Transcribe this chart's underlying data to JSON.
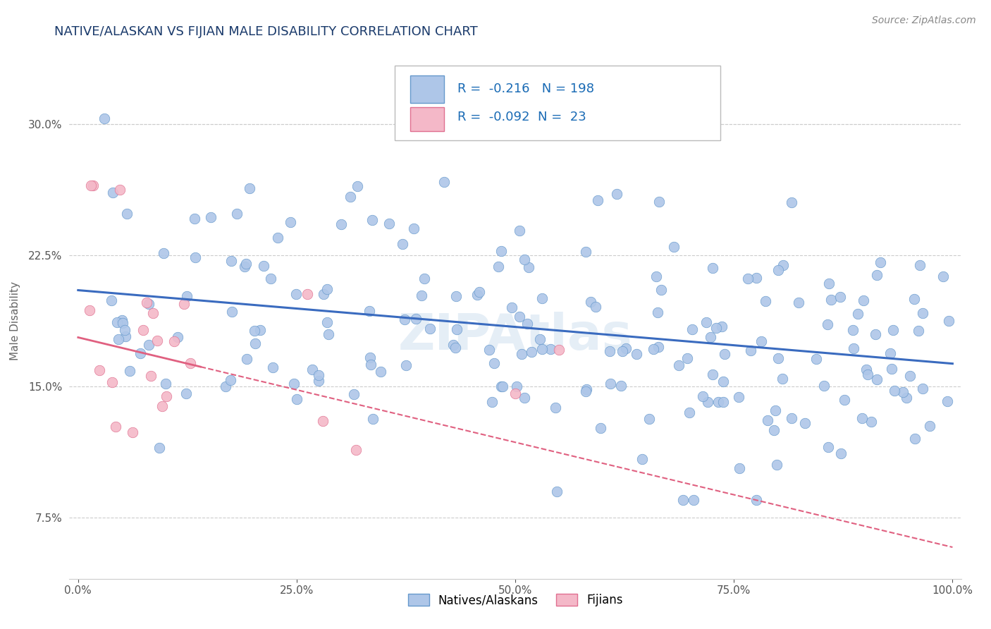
{
  "title": "NATIVE/ALASKAN VS FIJIAN MALE DISABILITY CORRELATION CHART",
  "source": "Source: ZipAtlas.com",
  "ylabel": "Male Disability",
  "native_R": -0.216,
  "native_N": 198,
  "fijian_R": -0.092,
  "fijian_N": 23,
  "native_color": "#aec6e8",
  "native_edge_color": "#6699cc",
  "native_line_color": "#3a6bbf",
  "fijian_color": "#f4b8c8",
  "fijian_edge_color": "#e07090",
  "fijian_line_color": "#e06080",
  "title_color": "#1a3a6b",
  "legend_color": "#1a6bb5",
  "source_color": "#888888",
  "background_color": "#ffffff",
  "grid_color": "#cccccc",
  "ylim": [
    0.04,
    0.335
  ],
  "xlim": [
    -0.01,
    1.01
  ],
  "yticks": [
    0.075,
    0.15,
    0.225,
    0.3
  ],
  "xticks": [
    0.0,
    0.25,
    0.5,
    0.75,
    1.0
  ],
  "title_fontsize": 13,
  "axis_label_fontsize": 11,
  "tick_fontsize": 11,
  "legend_fontsize": 13,
  "watermark_text": "ZIPAtlas",
  "watermark_color": "#d0e0f0"
}
